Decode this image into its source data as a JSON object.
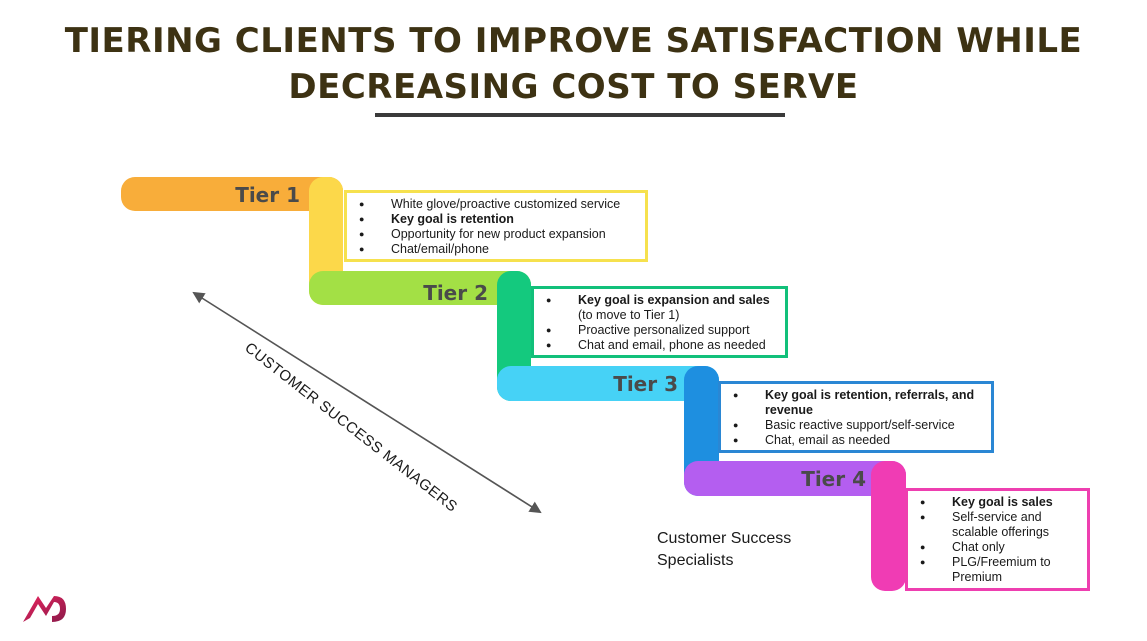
{
  "title": {
    "line1": "TIERING CLIENTS TO IMPROVE SATISFACTION WHILE",
    "line2": "DECREASING COST TO SERVE"
  },
  "tiers": [
    {
      "label": "Tier 1",
      "bar_color": "#f8ad3a",
      "step_color": "#fcd84a",
      "border_color": "#f6e14e",
      "items": [
        {
          "text": "White glove/proactive customized service",
          "bold": false
        },
        {
          "text": "Key goal is retention",
          "bold": true
        },
        {
          "text": "Opportunity for new product expansion",
          "bold": false
        },
        {
          "text": "Chat/email/phone",
          "bold": false
        }
      ]
    },
    {
      "label": "Tier 2",
      "bar_color": "#a3e045",
      "step_color": "#14c97e",
      "border_color": "#12c07a",
      "items": [
        {
          "text": "Key goal is expansion and sales",
          "bold": true,
          "sub": "(to move to Tier 1)"
        },
        {
          "text": "Proactive personalized support",
          "bold": false
        },
        {
          "text": "Chat and email, phone as needed",
          "bold": false
        }
      ]
    },
    {
      "label": "Tier 3",
      "bar_color": "#46d2f6",
      "step_color": "#1e8fe0",
      "border_color": "#2a87d4",
      "items": [
        {
          "text": "Key goal is retention, referrals, and revenue",
          "bold": true
        },
        {
          "text": "Basic reactive support/self-service",
          "bold": false
        },
        {
          "text": "Chat, email as needed",
          "bold": false
        }
      ]
    },
    {
      "label": "Tier 4",
      "bar_color": "#b45ef0",
      "step_color": "#f03cb4",
      "border_color": "#ee3fb0",
      "items": [
        {
          "text": "Key goal is sales",
          "bold": true
        },
        {
          "text": "Self-service and scalable offerings",
          "bold": false
        },
        {
          "text": "Chat only",
          "bold": false
        },
        {
          "text": "PLG/Freemium to Premium",
          "bold": false
        }
      ]
    }
  ],
  "labels": {
    "csm": "CUSTOMER SUCCESS MANAGERS",
    "css": "Customer Success Specialists"
  },
  "logo": {
    "icon": "brand-logo-icon",
    "color": "#d61f5b"
  }
}
